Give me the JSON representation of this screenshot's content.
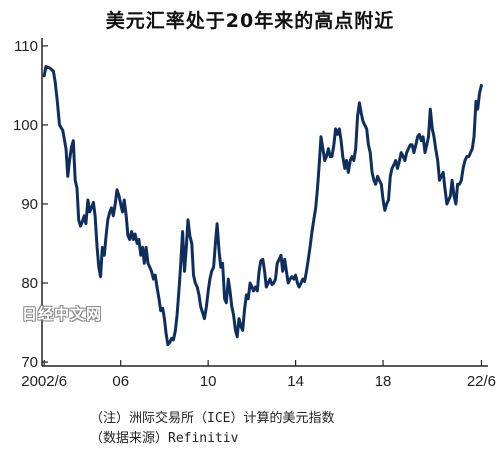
{
  "title": "美元汇率处于20年来的高点附近",
  "watermark": "日经中文网",
  "notes": [
    "（注）洲际交易所（ICE）计算的美元指数",
    "（数据来源）Refinitiv"
  ],
  "colors": {
    "line": "#0e2f5e",
    "axis": "#222222"
  },
  "chart_data": {
    "type": "line",
    "title": "美元汇率处于20年来的高点附近",
    "xlabel": "",
    "ylabel": "",
    "xlim": [
      2002.4,
      2022.8
    ],
    "ylim": [
      69.5,
      111
    ],
    "x_ticks": [
      2002.5,
      2006,
      2010,
      2014,
      2018,
      2022.5
    ],
    "x_tick_labels": [
      "2002/6",
      "06",
      "10",
      "14",
      "18",
      "22/6"
    ],
    "y_ticks": [
      70,
      80,
      90,
      100,
      110
    ],
    "y_tick_labels": [
      "70",
      "80",
      "90",
      "100",
      "110"
    ],
    "grid": false,
    "series": [
      {
        "values": [
          [
            2002.5,
            106.2
          ],
          [
            2002.58,
            107.4
          ],
          [
            2002.75,
            107.2
          ],
          [
            2002.92,
            106.8
          ],
          [
            2003.0,
            105.5
          ],
          [
            2003.1,
            103.0
          ],
          [
            2003.2,
            100.0
          ],
          [
            2003.35,
            99.3
          ],
          [
            2003.5,
            97.0
          ],
          [
            2003.58,
            93.5
          ],
          [
            2003.66,
            95.5
          ],
          [
            2003.75,
            97.2
          ],
          [
            2003.83,
            98.0
          ],
          [
            2003.92,
            93.0
          ],
          [
            2004.0,
            92.0
          ],
          [
            2004.08,
            88.0
          ],
          [
            2004.16,
            87.2
          ],
          [
            2004.25,
            87.8
          ],
          [
            2004.33,
            88.5
          ],
          [
            2004.41,
            87.5
          ],
          [
            2004.5,
            90.5
          ],
          [
            2004.58,
            89.0
          ],
          [
            2004.66,
            89.5
          ],
          [
            2004.75,
            90.2
          ],
          [
            2004.83,
            88.5
          ],
          [
            2004.92,
            84.5
          ],
          [
            2005.0,
            82.0
          ],
          [
            2005.08,
            80.8
          ],
          [
            2005.16,
            84.5
          ],
          [
            2005.25,
            83.5
          ],
          [
            2005.33,
            86.0
          ],
          [
            2005.41,
            88.0
          ],
          [
            2005.5,
            89.0
          ],
          [
            2005.58,
            89.5
          ],
          [
            2005.66,
            88.5
          ],
          [
            2005.75,
            90.0
          ],
          [
            2005.83,
            91.8
          ],
          [
            2005.92,
            91.0
          ],
          [
            2006.0,
            90.0
          ],
          [
            2006.08,
            89.0
          ],
          [
            2006.16,
            90.5
          ],
          [
            2006.25,
            88.5
          ],
          [
            2006.33,
            86.0
          ],
          [
            2006.41,
            85.5
          ],
          [
            2006.5,
            86.5
          ],
          [
            2006.58,
            85.5
          ],
          [
            2006.66,
            86.2
          ],
          [
            2006.75,
            85.0
          ],
          [
            2006.83,
            85.5
          ],
          [
            2006.92,
            83.5
          ],
          [
            2007.0,
            84.5
          ],
          [
            2007.08,
            82.5
          ],
          [
            2007.16,
            84.5
          ],
          [
            2007.25,
            82.5
          ],
          [
            2007.33,
            82.0
          ],
          [
            2007.41,
            81.5
          ],
          [
            2007.5,
            80.5
          ],
          [
            2007.58,
            81.0
          ],
          [
            2007.66,
            79.5
          ],
          [
            2007.75,
            78.0
          ],
          [
            2007.83,
            76.5
          ],
          [
            2007.92,
            76.8
          ],
          [
            2008.0,
            75.5
          ],
          [
            2008.08,
            73.5
          ],
          [
            2008.16,
            72.2
          ],
          [
            2008.25,
            72.5
          ],
          [
            2008.33,
            73.0
          ],
          [
            2008.41,
            72.8
          ],
          [
            2008.5,
            74.0
          ],
          [
            2008.58,
            76.0
          ],
          [
            2008.66,
            79.0
          ],
          [
            2008.75,
            82.5
          ],
          [
            2008.83,
            86.5
          ],
          [
            2008.92,
            81.5
          ],
          [
            2009.0,
            84.5
          ],
          [
            2009.08,
            88.0
          ],
          [
            2009.16,
            86.0
          ],
          [
            2009.25,
            85.0
          ],
          [
            2009.33,
            81.0
          ],
          [
            2009.41,
            80.0
          ],
          [
            2009.5,
            79.5
          ],
          [
            2009.58,
            78.5
          ],
          [
            2009.66,
            77.0
          ],
          [
            2009.75,
            76.2
          ],
          [
            2009.83,
            75.5
          ],
          [
            2009.92,
            77.0
          ],
          [
            2010.0,
            79.0
          ],
          [
            2010.08,
            80.5
          ],
          [
            2010.16,
            81.5
          ],
          [
            2010.25,
            82.0
          ],
          [
            2010.33,
            85.0
          ],
          [
            2010.41,
            87.5
          ],
          [
            2010.5,
            84.0
          ],
          [
            2010.58,
            82.0
          ],
          [
            2010.66,
            82.5
          ],
          [
            2010.75,
            78.0
          ],
          [
            2010.83,
            77.5
          ],
          [
            2010.92,
            80.5
          ],
          [
            2011.0,
            79.0
          ],
          [
            2011.08,
            77.0
          ],
          [
            2011.16,
            76.0
          ],
          [
            2011.25,
            74.0
          ],
          [
            2011.33,
            73.2
          ],
          [
            2011.41,
            75.5
          ],
          [
            2011.5,
            74.5
          ],
          [
            2011.58,
            74.0
          ],
          [
            2011.66,
            76.5
          ],
          [
            2011.75,
            78.5
          ],
          [
            2011.83,
            78.0
          ],
          [
            2011.92,
            80.0
          ],
          [
            2012.0,
            79.5
          ],
          [
            2012.08,
            79.0
          ],
          [
            2012.16,
            79.5
          ],
          [
            2012.25,
            79.0
          ],
          [
            2012.33,
            81.5
          ],
          [
            2012.41,
            82.8
          ],
          [
            2012.5,
            83.0
          ],
          [
            2012.58,
            81.5
          ],
          [
            2012.66,
            79.5
          ],
          [
            2012.75,
            80.0
          ],
          [
            2012.83,
            80.5
          ],
          [
            2012.92,
            79.8
          ],
          [
            2013.0,
            80.0
          ],
          [
            2013.08,
            80.5
          ],
          [
            2013.16,
            82.5
          ],
          [
            2013.25,
            83.0
          ],
          [
            2013.33,
            83.5
          ],
          [
            2013.41,
            81.5
          ],
          [
            2013.5,
            83.0
          ],
          [
            2013.58,
            81.5
          ],
          [
            2013.66,
            80.0
          ],
          [
            2013.75,
            80.5
          ],
          [
            2013.83,
            80.8
          ],
          [
            2013.92,
            80.5
          ],
          [
            2014.0,
            81.0
          ],
          [
            2014.08,
            80.0
          ],
          [
            2014.16,
            79.5
          ],
          [
            2014.25,
            80.0
          ],
          [
            2014.33,
            80.5
          ],
          [
            2014.41,
            80.2
          ],
          [
            2014.5,
            81.5
          ],
          [
            2014.58,
            83.0
          ],
          [
            2014.66,
            84.5
          ],
          [
            2014.75,
            86.5
          ],
          [
            2014.83,
            88.0
          ],
          [
            2014.92,
            89.5
          ],
          [
            2015.0,
            92.0
          ],
          [
            2015.08,
            95.0
          ],
          [
            2015.16,
            98.5
          ],
          [
            2015.25,
            97.0
          ],
          [
            2015.33,
            95.5
          ],
          [
            2015.41,
            96.0
          ],
          [
            2015.5,
            97.0
          ],
          [
            2015.58,
            96.0
          ],
          [
            2015.66,
            96.0
          ],
          [
            2015.75,
            97.5
          ],
          [
            2015.83,
            99.5
          ],
          [
            2015.92,
            98.8
          ],
          [
            2016.0,
            99.5
          ],
          [
            2016.08,
            98.0
          ],
          [
            2016.16,
            96.0
          ],
          [
            2016.25,
            94.5
          ],
          [
            2016.33,
            95.5
          ],
          [
            2016.41,
            94.0
          ],
          [
            2016.5,
            95.5
          ],
          [
            2016.58,
            96.0
          ],
          [
            2016.66,
            95.5
          ],
          [
            2016.75,
            97.0
          ],
          [
            2016.83,
            101.0
          ],
          [
            2016.92,
            102.8
          ],
          [
            2017.0,
            101.5
          ],
          [
            2017.08,
            100.5
          ],
          [
            2017.16,
            100.0
          ],
          [
            2017.25,
            99.5
          ],
          [
            2017.33,
            97.5
          ],
          [
            2017.41,
            96.5
          ],
          [
            2017.5,
            94.0
          ],
          [
            2017.58,
            93.0
          ],
          [
            2017.66,
            92.5
          ],
          [
            2017.75,
            93.5
          ],
          [
            2017.83,
            93.0
          ],
          [
            2017.92,
            92.5
          ],
          [
            2018.0,
            90.5
          ],
          [
            2018.08,
            89.2
          ],
          [
            2018.16,
            90.0
          ],
          [
            2018.25,
            90.5
          ],
          [
            2018.33,
            93.5
          ],
          [
            2018.41,
            94.5
          ],
          [
            2018.5,
            95.0
          ],
          [
            2018.58,
            95.5
          ],
          [
            2018.66,
            94.5
          ],
          [
            2018.75,
            95.5
          ],
          [
            2018.83,
            96.5
          ],
          [
            2018.92,
            96.0
          ],
          [
            2019.0,
            95.5
          ],
          [
            2019.08,
            96.5
          ],
          [
            2019.16,
            97.0
          ],
          [
            2019.25,
            97.5
          ],
          [
            2019.33,
            97.5
          ],
          [
            2019.41,
            96.5
          ],
          [
            2019.5,
            97.5
          ],
          [
            2019.58,
            98.5
          ],
          [
            2019.66,
            98.8
          ],
          [
            2019.75,
            98.0
          ],
          [
            2019.83,
            98.5
          ],
          [
            2019.92,
            96.5
          ],
          [
            2020.0,
            97.5
          ],
          [
            2020.08,
            98.5
          ],
          [
            2020.16,
            102.0
          ],
          [
            2020.25,
            99.5
          ],
          [
            2020.33,
            98.5
          ],
          [
            2020.41,
            97.0
          ],
          [
            2020.5,
            95.5
          ],
          [
            2020.58,
            93.0
          ],
          [
            2020.66,
            93.5
          ],
          [
            2020.75,
            94.0
          ],
          [
            2020.83,
            92.0
          ],
          [
            2020.92,
            90.0
          ],
          [
            2021.0,
            90.5
          ],
          [
            2021.08,
            91.0
          ],
          [
            2021.16,
            93.0
          ],
          [
            2021.25,
            91.0
          ],
          [
            2021.33,
            90.0
          ],
          [
            2021.41,
            92.5
          ],
          [
            2021.5,
            92.5
          ],
          [
            2021.58,
            93.0
          ],
          [
            2021.66,
            94.5
          ],
          [
            2021.75,
            95.5
          ],
          [
            2021.83,
            96.0
          ],
          [
            2021.92,
            96.0
          ],
          [
            2022.0,
            96.5
          ],
          [
            2022.08,
            97.0
          ],
          [
            2022.16,
            98.5
          ],
          [
            2022.25,
            103.0
          ],
          [
            2022.33,
            102.0
          ],
          [
            2022.41,
            104.0
          ],
          [
            2022.5,
            105.0
          ]
        ]
      }
    ]
  }
}
